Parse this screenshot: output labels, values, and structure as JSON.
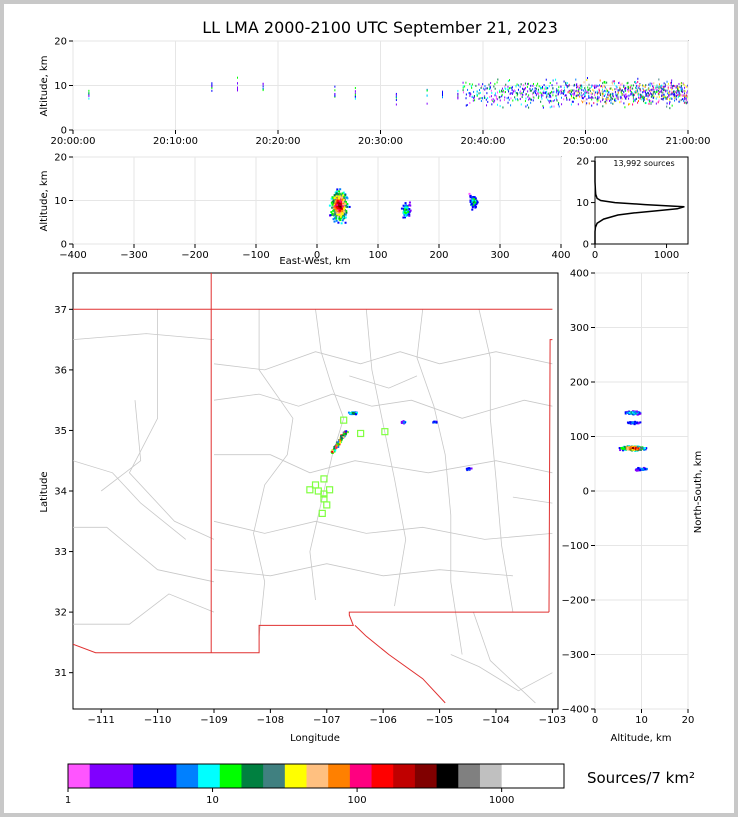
{
  "title": "LL LMA 2000-2100 UTC September 21, 2023",
  "colors": {
    "stateBorder": "#e03030",
    "countyBorder": "#c8c8c8",
    "stationMarker": "#80ff40",
    "histLine": "#000000"
  },
  "station_count_label": "13,992 sources",
  "colorbar": {
    "label": "Sources/7 km²",
    "bins": [
      "#ff55ff",
      "#8000ff",
      "#8000ff",
      "#0000ff",
      "#0000ff",
      "#0080ff",
      "#00ffff",
      "#00ff00",
      "#008040",
      "#408080",
      "#ffff00",
      "#ffc080",
      "#ff8000",
      "#ff0080",
      "#ff0000",
      "#c00000",
      "#800000",
      "#000000",
      "#808080",
      "#c0c0c0",
      "#ffffff"
    ],
    "tick_labels": [
      "1",
      "10",
      "100",
      "1000"
    ]
  },
  "chart_data": [
    {
      "panel": "time-altitude",
      "type": "scatter",
      "xlabel": "",
      "ylabel": "Altitude, km",
      "ylim": [
        0,
        20
      ],
      "x_ticks": [
        "20:00:00",
        "20:10:00",
        "20:20:00",
        "20:30:00",
        "20:40:00",
        "20:50:00",
        "21:00:00"
      ],
      "y_ticks": [
        "0",
        "10",
        "20"
      ],
      "xlim_minutes": [
        0,
        60
      ],
      "activity": [
        {
          "t": 1.5,
          "alt": 8
        },
        {
          "t": 13.5,
          "alt": 10
        },
        {
          "t": 16,
          "alt": 10
        },
        {
          "t": 18.5,
          "alt": 10
        },
        {
          "t": 25.5,
          "alt": 8
        },
        {
          "t": 27.5,
          "alt": 8
        },
        {
          "t": 31.5,
          "alt": 8
        },
        {
          "t": 34.5,
          "alt": 8
        },
        {
          "t": 36,
          "alt": 8
        },
        {
          "t": 37.5,
          "alt": 8
        }
      ],
      "dense_interval_minutes": [
        38,
        60
      ]
    },
    {
      "panel": "east-west-altitude",
      "type": "scatter",
      "xlabel": "East-West, km",
      "ylabel": "Altitude, km",
      "xlim": [
        -400,
        400
      ],
      "ylim": [
        0,
        20
      ],
      "x_ticks": [
        "−400",
        "−300",
        "−200",
        "−100",
        "0",
        "100",
        "200",
        "300",
        "400"
      ],
      "y_ticks": [
        "0",
        "10",
        "20"
      ],
      "clusters": [
        {
          "x": 35,
          "alt": 9,
          "weight": "high"
        },
        {
          "x": 145,
          "alt": 8,
          "weight": "low"
        },
        {
          "x": 255,
          "alt": 10,
          "weight": "low"
        }
      ]
    },
    {
      "panel": "altitude-histogram",
      "type": "line",
      "xlabel": "",
      "ylabel": "",
      "xlim": [
        0,
        1300
      ],
      "ylim": [
        0,
        21
      ],
      "x_ticks": [
        "0",
        "1000"
      ],
      "y_ticks": [
        "0",
        "10",
        "20"
      ],
      "altitude_km": [
        0,
        3,
        4,
        5,
        6,
        7,
        7.5,
        8,
        8.5,
        9,
        9.5,
        10,
        10.5,
        11,
        12,
        13,
        15,
        20
      ],
      "count": [
        0,
        0,
        5,
        30,
        120,
        320,
        550,
        850,
        1150,
        1250,
        700,
        280,
        80,
        30,
        10,
        5,
        0,
        0
      ]
    },
    {
      "panel": "plan-view",
      "type": "scatter",
      "xlabel": "Longitude",
      "ylabel": "Latitude",
      "xlim": [
        -111.5,
        -102.9
      ],
      "ylim": [
        30.4,
        37.6
      ],
      "x_ticks": [
        "−111",
        "−110",
        "−109",
        "−108",
        "−107",
        "−106",
        "−105",
        "−104",
        "−103"
      ],
      "y_ticks": [
        "31",
        "32",
        "33",
        "34",
        "35",
        "36",
        "37"
      ],
      "clusters": [
        {
          "lon": -106.8,
          "lat": 34.85,
          "weight": "high"
        },
        {
          "lon": -106.55,
          "lat": 35.3,
          "weight": "medium"
        },
        {
          "lon": -105.65,
          "lat": 35.15,
          "weight": "low"
        },
        {
          "lon": -105.1,
          "lat": 35.15,
          "weight": "low"
        },
        {
          "lon": -104.5,
          "lat": 34.38,
          "weight": "low"
        }
      ],
      "stations": [
        {
          "lon": -106.7,
          "lat": 35.17
        },
        {
          "lon": -106.4,
          "lat": 34.95
        },
        {
          "lon": -105.97,
          "lat": 34.98
        },
        {
          "lon": -107.05,
          "lat": 34.2
        },
        {
          "lon": -107.2,
          "lat": 34.1
        },
        {
          "lon": -107.3,
          "lat": 34.02
        },
        {
          "lon": -107.15,
          "lat": 34.0
        },
        {
          "lon": -106.95,
          "lat": 34.02
        },
        {
          "lon": -107.05,
          "lat": 33.95
        },
        {
          "lon": -107.0,
          "lat": 33.77
        },
        {
          "lon": -107.08,
          "lat": 33.63
        },
        {
          "lon": -107.05,
          "lat": 33.87
        }
      ]
    },
    {
      "panel": "altitude-north-south",
      "type": "scatter",
      "xlabel": "Altitude, km",
      "ylabel": "North-South, km",
      "xlim": [
        0,
        20
      ],
      "ylim": [
        -400,
        400
      ],
      "x_ticks": [
        "0",
        "10",
        "20"
      ],
      "y_ticks": [
        "−400",
        "−300",
        "−200",
        "−100",
        "0",
        "100",
        "200",
        "300",
        "400"
      ],
      "clusters": [
        {
          "alt": 8,
          "y": 145,
          "weight": "medium"
        },
        {
          "alt": 8,
          "y": 127,
          "weight": "low"
        },
        {
          "alt": 8,
          "y": 80,
          "weight": "high"
        },
        {
          "alt": 10,
          "y": 42,
          "weight": "low"
        }
      ]
    }
  ]
}
